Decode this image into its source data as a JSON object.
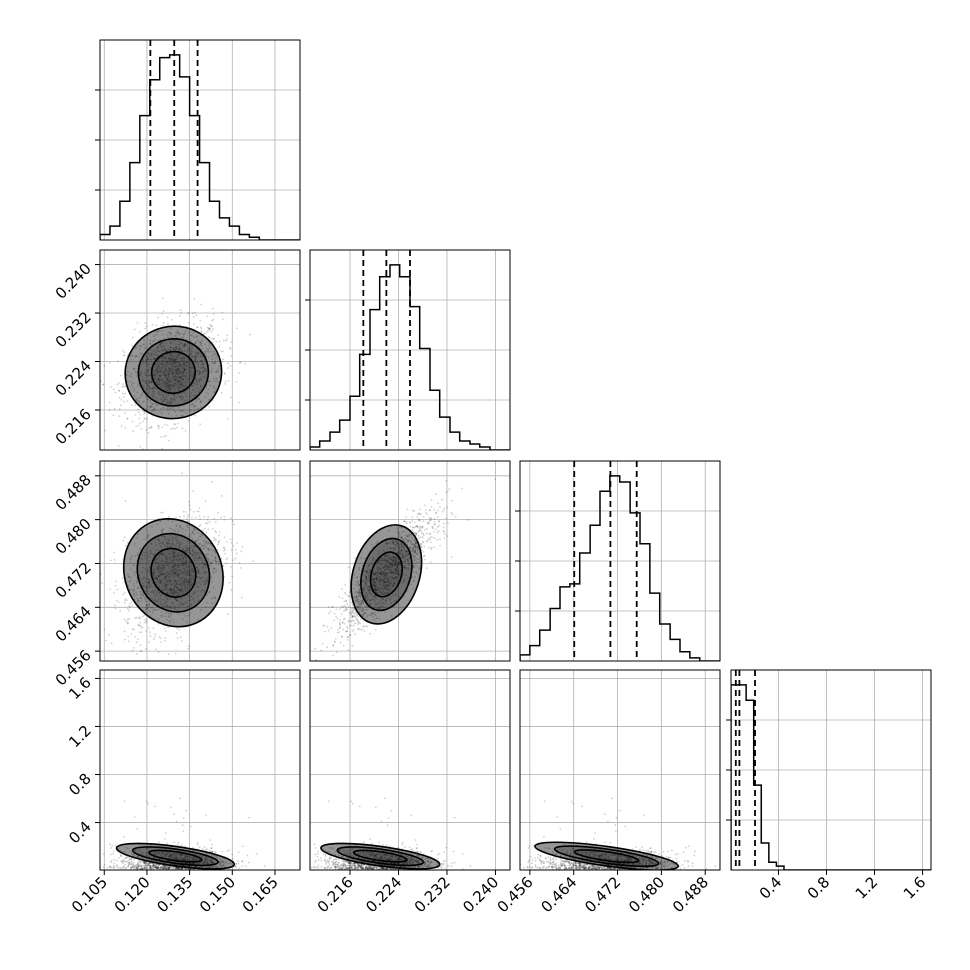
{
  "chart_data": {
    "type": "corner",
    "grid": true,
    "params": [
      {
        "ticks": [
          "0.105",
          "0.120",
          "0.135",
          "0.150",
          "0.165"
        ],
        "tick_values": [
          0.105,
          0.12,
          0.135,
          0.15,
          0.165
        ],
        "range": [
          0.1035,
          0.1738
        ],
        "quantiles": [
          0.1212,
          0.1296,
          0.1378
        ]
      },
      {
        "ticks": [
          "0.216",
          "0.224",
          "0.232",
          "0.240"
        ],
        "tick_values": [
          0.216,
          0.224,
          0.232,
          0.24
        ],
        "range": [
          0.2094,
          0.2424
        ],
        "quantiles": [
          0.2182,
          0.222,
          0.2259
        ]
      },
      {
        "ticks": [
          "0.456",
          "0.464",
          "0.472",
          "0.480",
          "0.488"
        ],
        "tick_values": [
          0.456,
          0.464,
          0.472,
          0.48,
          0.488
        ],
        "range": [
          0.4542,
          0.4907
        ],
        "quantiles": [
          0.4641,
          0.4707,
          0.4755
        ]
      },
      {
        "ticks": [
          "0.4",
          "0.8",
          "1.2",
          "1.6"
        ],
        "tick_values": [
          0.4,
          0.8,
          1.2,
          1.6
        ],
        "range": [
          0.005,
          1.67
        ],
        "quantiles": [
          0.045,
          0.075,
          0.205
        ]
      }
    ],
    "row_ticks": [
      {
        "ticks": [],
        "tick_values": []
      },
      {
        "ticks": [
          "0.216",
          "0.224",
          "0.232",
          "0.240"
        ],
        "tick_values": [
          0.216,
          0.224,
          0.232,
          0.24
        ]
      },
      {
        "ticks": [
          "0.456",
          "0.464",
          "0.472",
          "0.480",
          "0.488"
        ],
        "tick_values": [
          0.456,
          0.464,
          0.472,
          0.48,
          0.488
        ]
      },
      {
        "ticks": [
          "0.4",
          "0.8",
          "1.2",
          "1.6"
        ],
        "tick_values": [
          0.4,
          0.8,
          1.2,
          1.6
        ]
      }
    ],
    "histograms": [
      {
        "edges": [
          0.1035,
          0.107,
          0.1105,
          0.114,
          0.1175,
          0.121,
          0.1245,
          0.128,
          0.1315,
          0.135,
          0.1385,
          0.142,
          0.1455,
          0.149,
          0.1525,
          0.156,
          0.1595,
          0.163,
          0.1665,
          0.17,
          0.1738
        ],
        "counts": [
          2,
          5,
          14,
          28,
          45,
          58,
          66,
          67,
          59,
          45,
          28,
          14,
          8,
          5,
          2,
          1,
          0,
          0,
          0,
          0
        ]
      },
      {
        "edges": [
          0.2094,
          0.211,
          0.2127,
          0.2143,
          0.216,
          0.2176,
          0.2193,
          0.2209,
          0.2226,
          0.2242,
          0.2259,
          0.2275,
          0.2292,
          0.2308,
          0.2325,
          0.2341,
          0.2358,
          0.2374,
          0.2391,
          0.2407,
          0.2424
        ],
        "counts": [
          1,
          3,
          6,
          10,
          18,
          32,
          47,
          58,
          62,
          58,
          48,
          34,
          20,
          11,
          6,
          3,
          2,
          1,
          0,
          0
        ]
      },
      {
        "edges": [
          0.4542,
          0.456,
          0.4578,
          0.4597,
          0.4615,
          0.4633,
          0.4651,
          0.467,
          0.4688,
          0.4706,
          0.4724,
          0.4743,
          0.4761,
          0.4779,
          0.4797,
          0.4816,
          0.4834,
          0.4852,
          0.487,
          0.4889,
          0.4907
        ],
        "counts": [
          2,
          5,
          10,
          17,
          24,
          25,
          35,
          44,
          55,
          60,
          58,
          48,
          38,
          22,
          12,
          7,
          3,
          1,
          0,
          0
        ]
      },
      {
        "edges": [
          0.005,
          0.068,
          0.131,
          0.194,
          0.257,
          0.32,
          0.383,
          0.446,
          0.509,
          0.572,
          0.635,
          0.698,
          0.761,
          0.824,
          0.887,
          0.95,
          1.013,
          1.076,
          1.139,
          1.202,
          1.265,
          1.328,
          1.391,
          1.454,
          1.517,
          1.58,
          1.67
        ],
        "counts": [
          48,
          48,
          44,
          22,
          7,
          2,
          1,
          0,
          0,
          0,
          0,
          0,
          0,
          0,
          0,
          0,
          0,
          0,
          0,
          0,
          0,
          0,
          0,
          0,
          0,
          0
        ]
      }
    ],
    "scatter_stats": [
      {
        "x": 0,
        "y": 1,
        "mx": 0.1293,
        "my": 0.2222,
        "sx": 0.0085,
        "sy": 0.004,
        "rho": 0.25
      },
      {
        "x": 0,
        "y": 2,
        "mx": 0.1293,
        "my": 0.4703,
        "sx": 0.0085,
        "sy": 0.0053,
        "rho": 0.4
      },
      {
        "x": 1,
        "y": 2,
        "mx": 0.222,
        "my": 0.47,
        "sx": 0.0042,
        "sy": 0.0055,
        "rho": 0.85
      },
      {
        "x": 0,
        "y": 3,
        "mx": 0.13,
        "my": 0.12,
        "sx": 0.0095,
        "sy": 0.085,
        "rho": -0.2
      },
      {
        "x": 1,
        "y": 3,
        "mx": 0.221,
        "my": 0.12,
        "sx": 0.0045,
        "sy": 0.085,
        "rho": -0.2
      },
      {
        "x": 2,
        "y": 3,
        "mx": 0.47,
        "my": 0.12,
        "sx": 0.006,
        "sy": 0.085,
        "rho": -0.2
      }
    ]
  }
}
